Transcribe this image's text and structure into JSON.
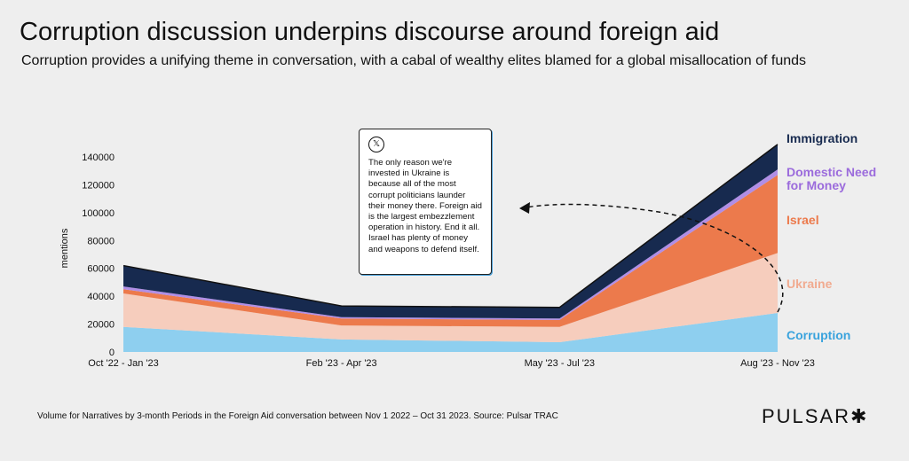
{
  "header": {
    "title": "Corruption discussion underpins discourse around foreign aid",
    "subtitle": "Corruption provides a unifying theme in conversation, with a cabal of wealthy elites blamed for a global misallocation of funds"
  },
  "chart_data": {
    "type": "area",
    "stacked": true,
    "ylabel": "mentions",
    "ylim": [
      0,
      140000
    ],
    "yticks": [
      "0",
      "20000",
      "40000",
      "60000",
      "80000",
      "100000",
      "120000",
      "140000"
    ],
    "categories": [
      "Oct '22 - Jan '23",
      "Feb '23 - Apr '23",
      "May '23 - Jul '23",
      "Aug '23 - Nov '23"
    ],
    "series": [
      {
        "name": "Corruption",
        "color": "#8ecfef",
        "label_color": "#3aa3dd",
        "values": [
          18000,
          9000,
          7000,
          28000
        ]
      },
      {
        "name": "Ukraine",
        "color": "#f6cdbd",
        "label_color": "#f1ab90",
        "values": [
          24000,
          10000,
          11000,
          43000
        ]
      },
      {
        "name": "Israel",
        "color": "#ec7a4c",
        "label_color": "#ec7a4c",
        "values": [
          3000,
          5000,
          5000,
          56000
        ]
      },
      {
        "name": "Domestic Need for Money",
        "color": "#b08ee6",
        "label_color": "#9b6bdc",
        "values": [
          2000,
          1000,
          1000,
          4000
        ]
      },
      {
        "name": "Immigration",
        "color": "#172a4f",
        "label_color": "#172a4f",
        "values": [
          15000,
          8000,
          8000,
          18000
        ]
      }
    ],
    "annotation": {
      "source": "X",
      "text": "The only reason we're invested in Ukraine is because all of the most corrupt politicians launder their money there. Foreign aid is the largest embezzlement operation in history. End it all. Israel has plenty of money and weapons to defend itself."
    }
  },
  "labels": {
    "immigration": "Immigration",
    "domestic_1": "Domestic Need",
    "domestic_2": "for Money",
    "israel": "Israel",
    "ukraine": "Ukraine",
    "corruption": "Corruption"
  },
  "tweet": {
    "icon": "x-logo-icon",
    "logo_glyph": "𝕏",
    "text": "The only reason we're invested in Ukraine is because all of the most corrupt politicians launder their money there. Foreign aid is the largest embezzlement operation in history. End it all. Israel has plenty of money and weapons to defend itself."
  },
  "footer": {
    "note": "Volume for Narratives by 3-month Periods in the Foreign Aid conversation between Nov 1 2022 – Oct 31 2023. Source: Pulsar TRAC",
    "brand": "PULSAR",
    "brand_mark": "✱"
  }
}
